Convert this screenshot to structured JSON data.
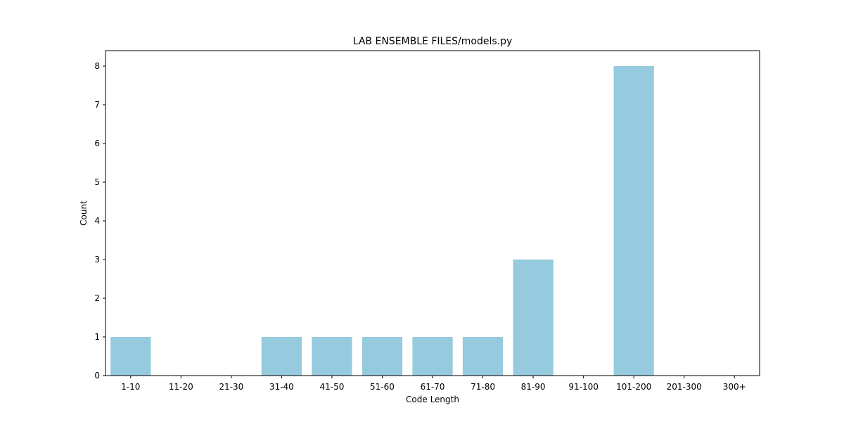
{
  "chart_data": {
    "type": "bar",
    "title": "LAB ENSEMBLE FILES/models.py",
    "xlabel": "Code Length",
    "ylabel": "Count",
    "categories": [
      "1-10",
      "11-20",
      "21-30",
      "31-40",
      "41-50",
      "51-60",
      "61-70",
      "71-80",
      "81-90",
      "91-100",
      "101-200",
      "201-300",
      "300+"
    ],
    "values": [
      1,
      0,
      0,
      1,
      1,
      1,
      1,
      1,
      3,
      0,
      8,
      0,
      0
    ],
    "ylim": [
      0,
      8.4
    ],
    "yticks": [
      0,
      1,
      2,
      3,
      4,
      5,
      6,
      7,
      8
    ],
    "grid": false,
    "legend": "none",
    "bar_color": "#96cade"
  }
}
